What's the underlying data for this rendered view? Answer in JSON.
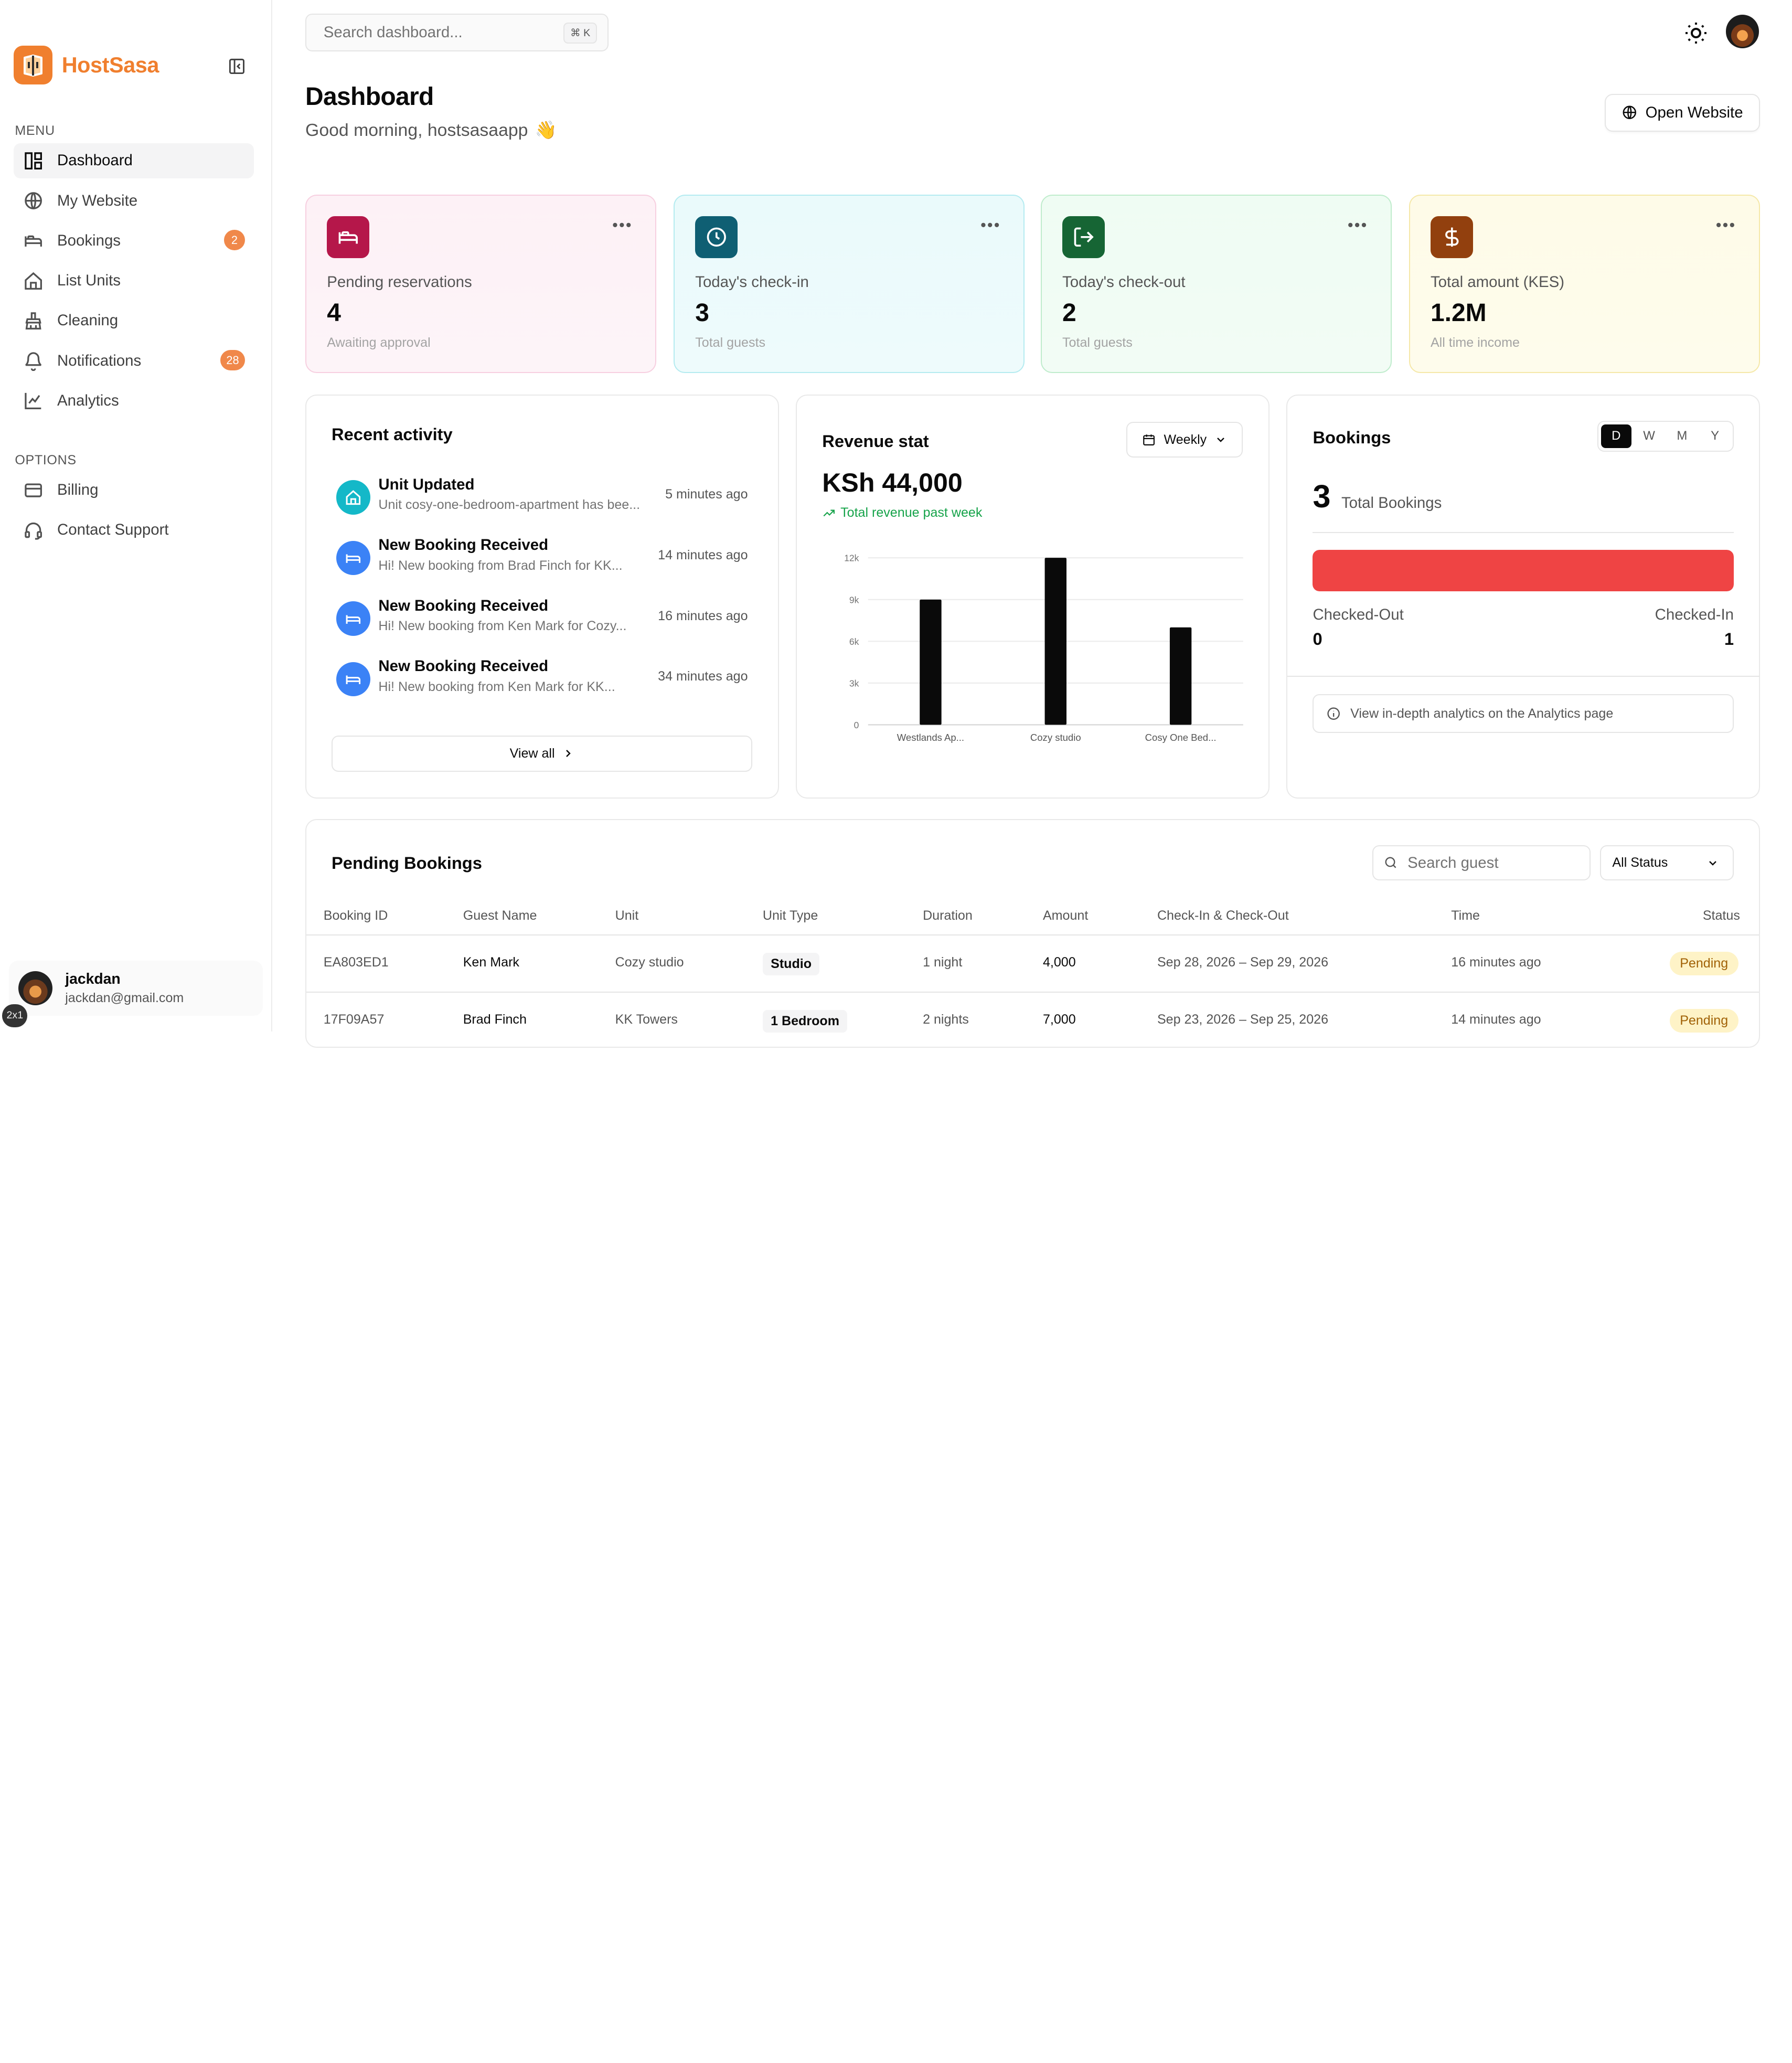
{
  "app": {
    "brand": "HostSasa"
  },
  "sidebar": {
    "menu_label": "MENU",
    "options_label": "OPTIONS",
    "menu": [
      {
        "label": "Dashboard",
        "icon": "dashboard-icon",
        "active": true
      },
      {
        "label": "My Website",
        "icon": "globe-icon"
      },
      {
        "label": "Bookings",
        "icon": "bed-icon",
        "badge": "2"
      },
      {
        "label": "List Units",
        "icon": "home-icon"
      },
      {
        "label": "Cleaning",
        "icon": "cleaning-icon"
      },
      {
        "label": "Notifications",
        "icon": "bell-icon",
        "badge": "28"
      },
      {
        "label": "Analytics",
        "icon": "chart-line-icon"
      }
    ],
    "options": [
      {
        "label": "Billing",
        "icon": "credit-card-icon"
      },
      {
        "label": "Contact Support",
        "icon": "headset-icon"
      }
    ],
    "user": {
      "name": "jackdan",
      "email": "jackdan@gmail.com"
    },
    "corner_tag": "2x1"
  },
  "header": {
    "search_placeholder": "Search dashboard...",
    "search_shortcut": "⌘ K",
    "title": "Dashboard",
    "greeting": "Good morning, hostsasaapp",
    "greeting_emoji": "👋",
    "open_website": "Open Website"
  },
  "stats": [
    {
      "label": "Pending reservations",
      "value": "4",
      "sub": "Awaiting approval",
      "icon": "bed-icon",
      "color": "#b5174a"
    },
    {
      "label": "Today's check-in",
      "value": "3",
      "sub": "Total guests",
      "icon": "clock-icon",
      "color": "#0f5f73"
    },
    {
      "label": "Today's check-out",
      "value": "2",
      "sub": "Total guests",
      "icon": "logout-icon",
      "color": "#166534"
    },
    {
      "label": "Total amount (KES)",
      "value": "1.2M",
      "sub": "All time income",
      "icon": "dollar-icon",
      "color": "#92400e"
    }
  ],
  "activity": {
    "title": "Recent activity",
    "items": [
      {
        "title": "Unit Updated",
        "desc": "Unit cosy-one-bedroom-apartment has bee...",
        "time": "5 minutes ago",
        "icon": "home-icon"
      },
      {
        "title": "New Booking Received",
        "desc": "Hi! New booking from Brad Finch for KK...",
        "time": "14 minutes ago",
        "icon": "bed-icon"
      },
      {
        "title": "New Booking Received",
        "desc": "Hi! New booking from Ken Mark for Cozy...",
        "time": "16 minutes ago",
        "icon": "bed-icon"
      },
      {
        "title": "New Booking Received",
        "desc": "Hi! New booking from Ken Mark for KK...",
        "time": "34 minutes ago",
        "icon": "bed-icon"
      }
    ],
    "view_all": "View all"
  },
  "revenue": {
    "title": "Revenue stat",
    "period": "Weekly",
    "value": "KSh 44,000",
    "trend": "Total revenue past week"
  },
  "chart_data": {
    "type": "bar",
    "categories": [
      "Westlands Ap...",
      "Cozy studio",
      "Cosy One Bed..."
    ],
    "values": [
      9000,
      12000,
      7000
    ],
    "ylim": [
      0,
      12000
    ],
    "yticks": [
      "0",
      "3k",
      "6k",
      "9k",
      "12k"
    ],
    "grid": true,
    "bar_color": "#0a0a0a"
  },
  "bookings": {
    "title": "Bookings",
    "periods": [
      "D",
      "W",
      "M",
      "Y"
    ],
    "active_period": "D",
    "total": "3",
    "total_label": "Total Bookings",
    "checked_out_label": "Checked-Out",
    "checked_in_label": "Checked-In",
    "checked_out": "0",
    "checked_in": "1",
    "bar_fill_fraction": 1.0,
    "info": "View in-depth analytics on the Analytics page"
  },
  "pending": {
    "title": "Pending Bookings",
    "search_placeholder": "Search guest",
    "status_filter": "All Status",
    "columns": [
      "Booking ID",
      "Guest Name",
      "Unit",
      "Unit Type",
      "Duration",
      "Amount",
      "Check-In & Check-Out",
      "Time",
      "Status"
    ],
    "rows": [
      {
        "id": "EA803ED1",
        "guest": "Ken Mark",
        "unit": "Cozy studio",
        "type": "Studio",
        "duration": "1 night",
        "amount": "4,000",
        "dates": "Sep 28, 2026 – Sep 29, 2026",
        "time": "16 minutes ago",
        "status": "Pending"
      },
      {
        "id": "17F09A57",
        "guest": "Brad Finch",
        "unit": "KK Towers",
        "type": "1 Bedroom",
        "duration": "2 nights",
        "amount": "7,000",
        "dates": "Sep 23, 2026 – Sep 25, 2026",
        "time": "14 minutes ago",
        "status": "Pending"
      }
    ]
  }
}
